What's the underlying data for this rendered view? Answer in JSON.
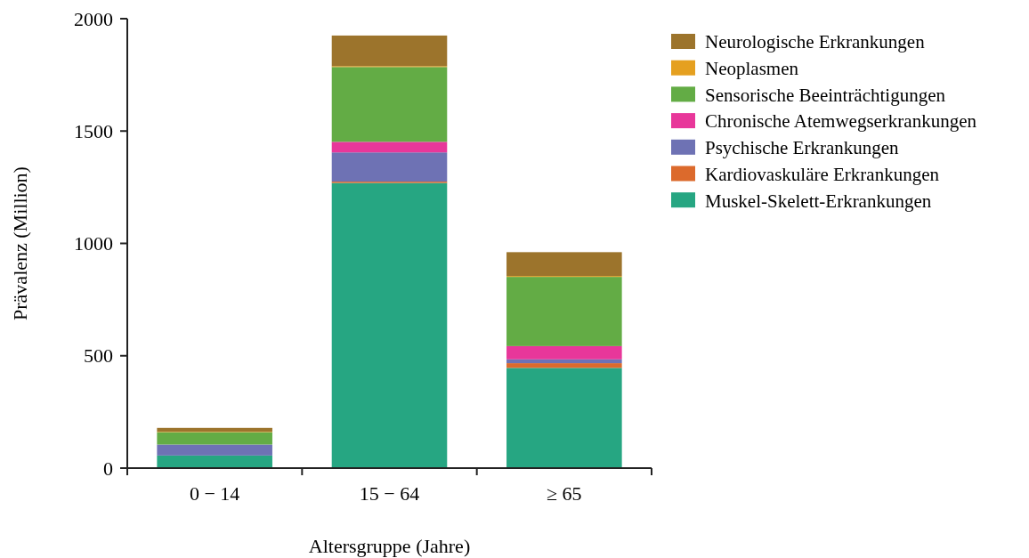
{
  "chart_data": {
    "type": "bar",
    "stacked": true,
    "xlabel": "Altersgruppe (Jahre)",
    "ylabel": "Prävalenz (Million)",
    "categories": [
      "0 − 14",
      "15 − 64",
      "≥ 65"
    ],
    "ylim": [
      0,
      2000
    ],
    "yticks": [
      0,
      500,
      1000,
      1500,
      2000
    ],
    "grid": false,
    "legend": "top right",
    "series": [
      {
        "name": "Muskel-Skelett-Erkrankungen",
        "color": "#26a682",
        "values": [
          56,
          1269,
          446
        ]
      },
      {
        "name": "Kardiovaskuläre Erkrankungen",
        "color": "#dc6a2c",
        "values": [
          null,
          6,
          21
        ]
      },
      {
        "name": "Psychische Erkrankungen",
        "color": "#6e72b4",
        "values": [
          49,
          130,
          17
        ]
      },
      {
        "name": "Chronische Atemwegserkrankungen",
        "color": "#e8379a",
        "values": [
          null,
          47,
          59
        ]
      },
      {
        "name": "Sensorische Beeinträchtigungen",
        "color": "#63ac45",
        "values": [
          55,
          333,
          308
        ]
      },
      {
        "name": "Neoplasmen",
        "color": "#e5a020",
        "values": [
          2,
          4,
          4
        ]
      },
      {
        "name": "Neurologische Erkrankungen",
        "color": "#9c742c",
        "values": [
          17,
          136,
          106
        ]
      }
    ]
  }
}
